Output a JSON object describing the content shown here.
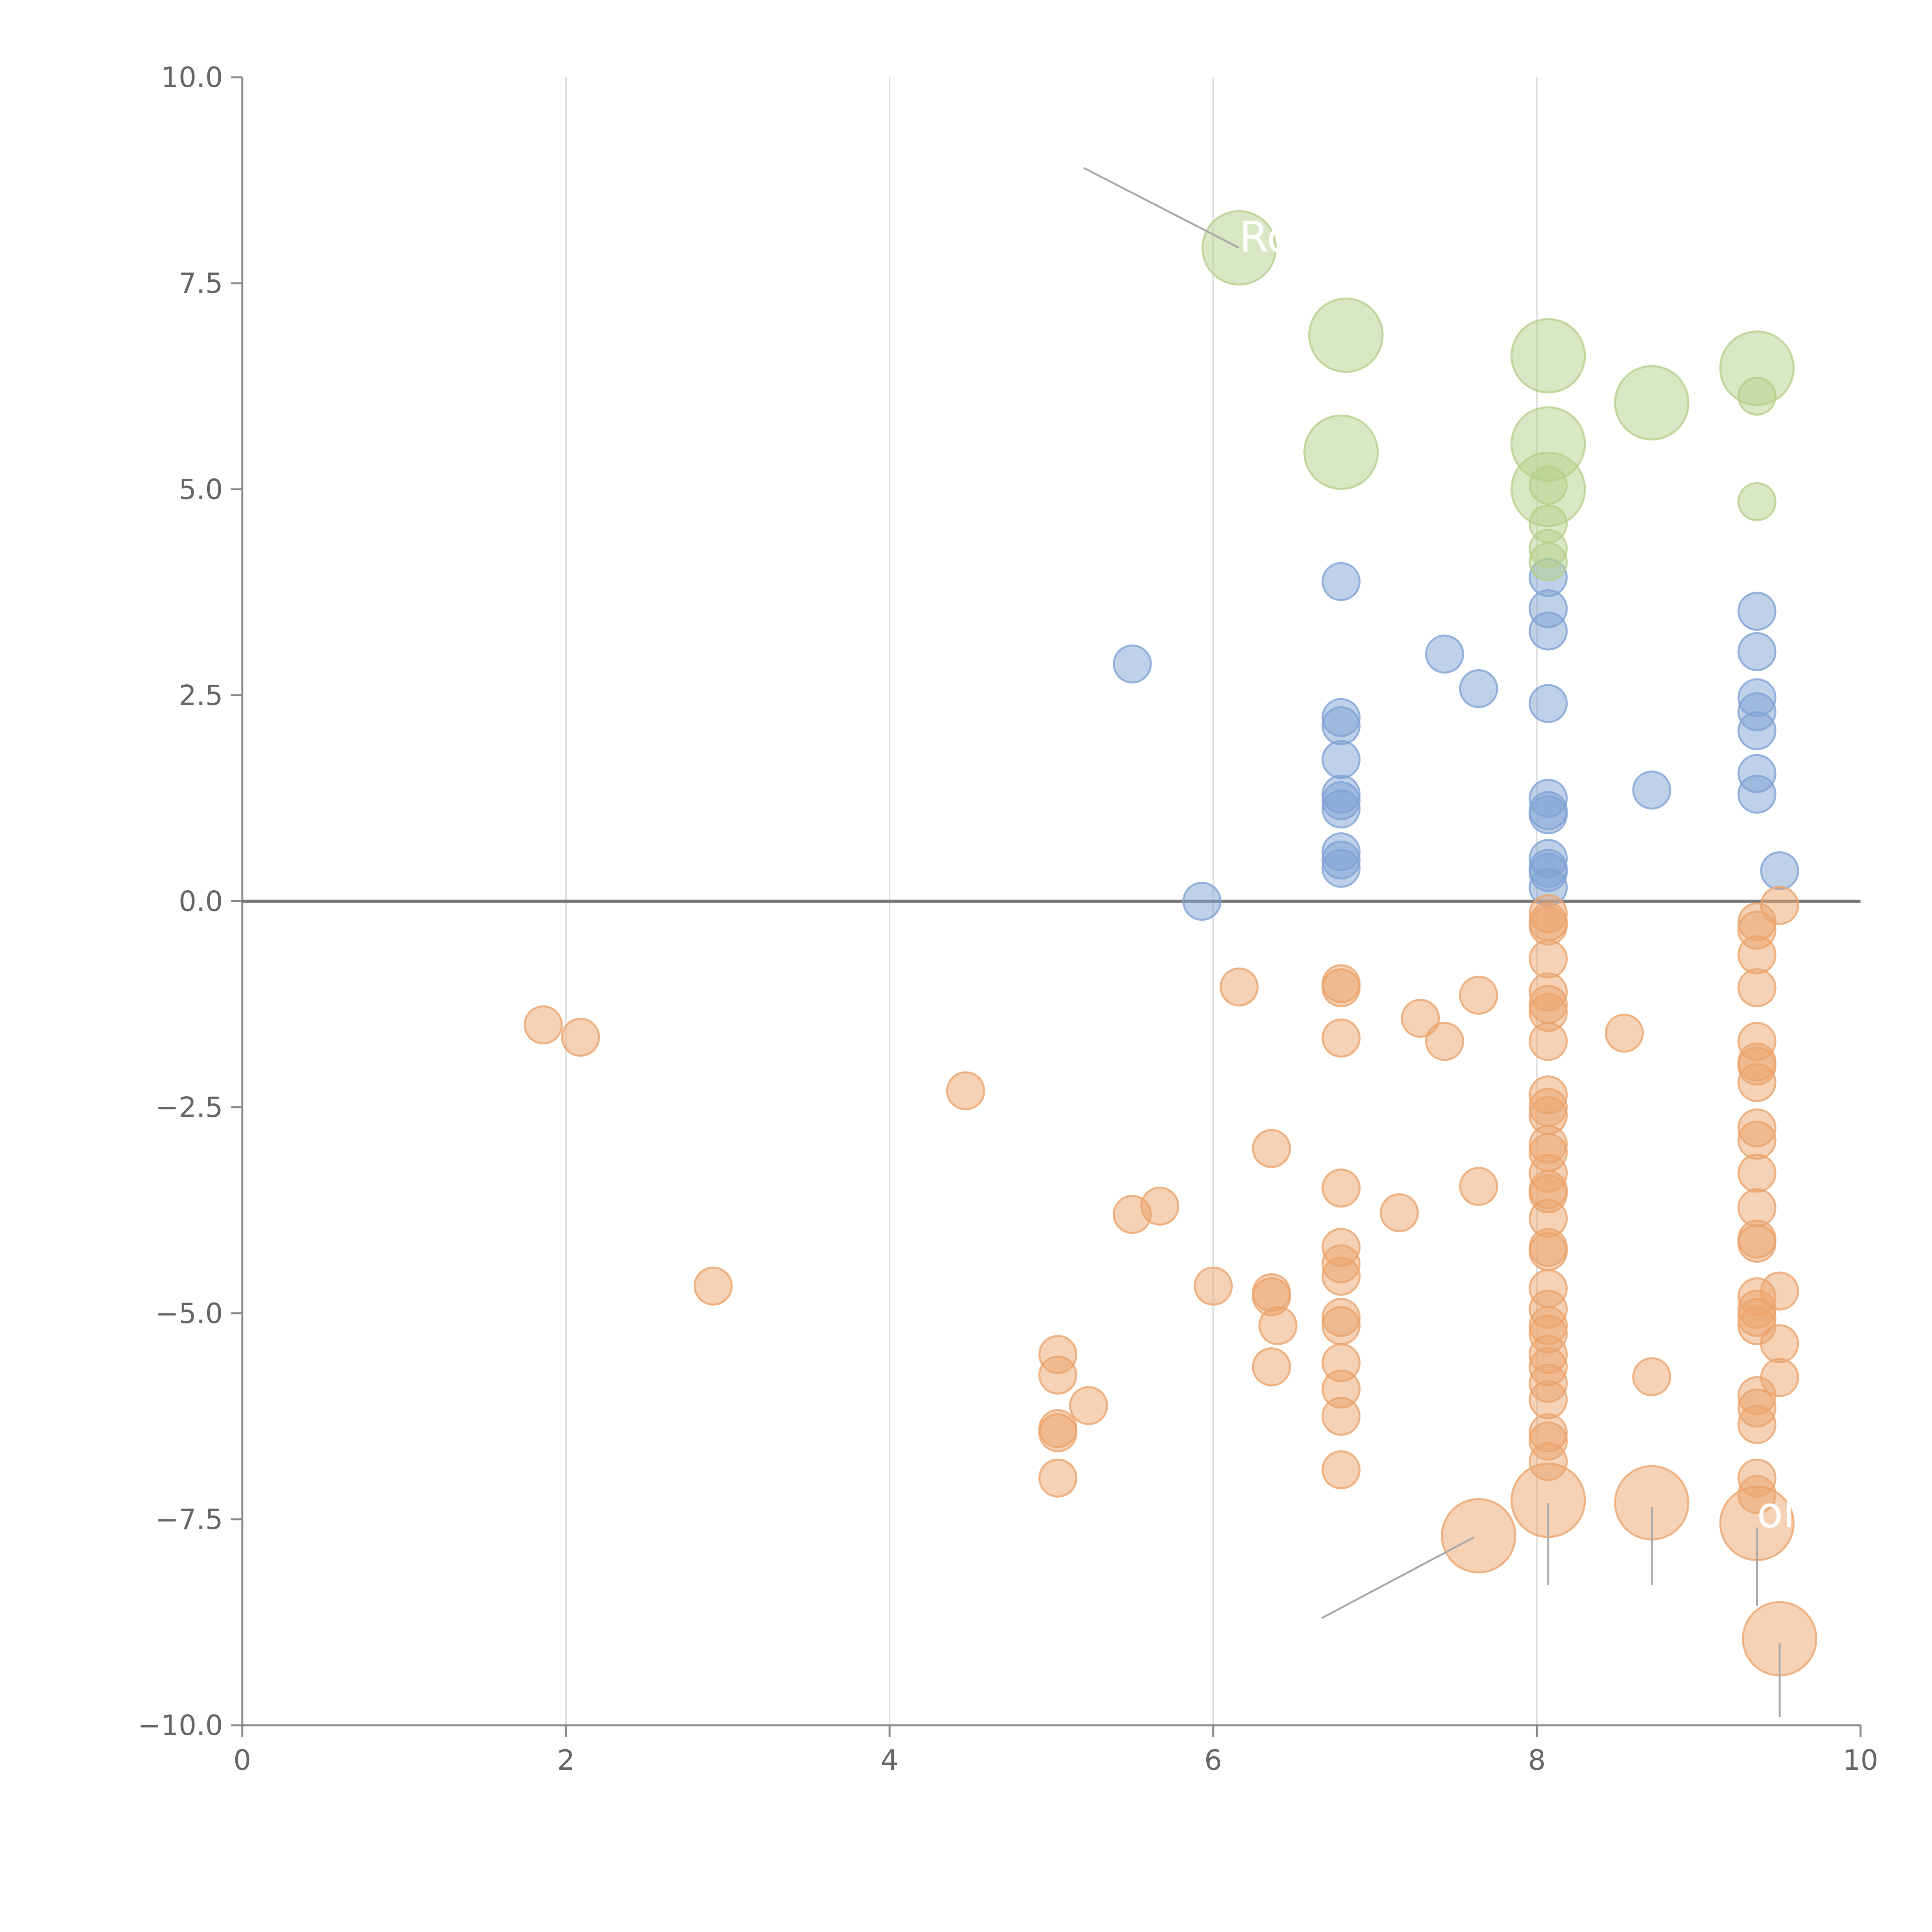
{
  "chart_data": {
    "type": "scatter",
    "title": "",
    "xlabel": "",
    "ylabel": "",
    "xlim": [
      0,
      10
    ],
    "ylim": [
      -10,
      10
    ],
    "x_ticks": [
      0,
      2,
      4,
      6,
      8,
      10
    ],
    "x_tick_labels": [
      "0",
      "2",
      "4",
      "6",
      "8",
      "10"
    ],
    "y_ticks": [
      10,
      7.5,
      5,
      2.5,
      0,
      -2.5,
      -5,
      -7.5,
      -10
    ],
    "y_tick_labels": [
      "10.0",
      "7.5",
      "5.0",
      "2.5",
      "0.0",
      "−2.5",
      "−5.0",
      "−7.5",
      "−10.0"
    ],
    "vertical_grid": true,
    "zero_line": true,
    "colors": {
      "blue": "#7fa2d4",
      "orange": "#eba46b",
      "green": "#b5d08a",
      "grid": "#dddddd",
      "axis": "#888888",
      "zero_line": "#777777",
      "leader": "#aaaaaa"
    },
    "series": [
      {
        "name": "blue",
        "color": "#7fa2d4",
        "points": [
          {
            "x": 5.5,
            "y": 2.88
          },
          {
            "x": 5.93,
            "y": 0.0
          },
          {
            "x": 6.79,
            "y": 3.88
          },
          {
            "x": 6.79,
            "y": 2.23
          },
          {
            "x": 6.79,
            "y": 2.13
          },
          {
            "x": 6.79,
            "y": 1.72
          },
          {
            "x": 6.79,
            "y": 1.3
          },
          {
            "x": 6.79,
            "y": 1.22
          },
          {
            "x": 6.79,
            "y": 1.12
          },
          {
            "x": 6.79,
            "y": 0.6
          },
          {
            "x": 6.79,
            "y": 0.5
          },
          {
            "x": 6.79,
            "y": 0.4
          },
          {
            "x": 7.43,
            "y": 3.0
          },
          {
            "x": 7.64,
            "y": 2.58
          },
          {
            "x": 8.07,
            "y": 3.93
          },
          {
            "x": 8.07,
            "y": 3.55
          },
          {
            "x": 8.07,
            "y": 3.28
          },
          {
            "x": 8.07,
            "y": 2.4
          },
          {
            "x": 8.07,
            "y": 1.25
          },
          {
            "x": 8.07,
            "y": 1.1
          },
          {
            "x": 8.07,
            "y": 1.05
          },
          {
            "x": 8.07,
            "y": 0.52
          },
          {
            "x": 8.07,
            "y": 0.4
          },
          {
            "x": 8.07,
            "y": 0.35
          },
          {
            "x": 8.07,
            "y": 0.17
          },
          {
            "x": 8.71,
            "y": 1.35
          },
          {
            "x": 9.36,
            "y": 3.52
          },
          {
            "x": 9.36,
            "y": 3.03
          },
          {
            "x": 9.36,
            "y": 2.47
          },
          {
            "x": 9.36,
            "y": 2.3
          },
          {
            "x": 9.36,
            "y": 2.07
          },
          {
            "x": 9.36,
            "y": 1.55
          },
          {
            "x": 9.36,
            "y": 1.3
          },
          {
            "x": 9.5,
            "y": 0.37
          }
        ]
      },
      {
        "name": "orange",
        "color": "#eba46b",
        "points": [
          {
            "x": 1.86,
            "y": -1.5
          },
          {
            "x": 2.09,
            "y": -1.65
          },
          {
            "x": 2.91,
            "y": -4.67
          },
          {
            "x": 4.47,
            "y": -2.3
          },
          {
            "x": 5.04,
            "y": -5.5
          },
          {
            "x": 5.04,
            "y": -5.75
          },
          {
            "x": 5.04,
            "y": -6.4
          },
          {
            "x": 5.04,
            "y": -6.45
          },
          {
            "x": 5.04,
            "y": -7.0
          },
          {
            "x": 5.23,
            "y": -6.12
          },
          {
            "x": 5.5,
            "y": -3.8
          },
          {
            "x": 5.67,
            "y": -3.7
          },
          {
            "x": 6.0,
            "y": -4.67
          },
          {
            "x": 6.16,
            "y": -1.04
          },
          {
            "x": 6.36,
            "y": -3.0
          },
          {
            "x": 6.36,
            "y": -4.75
          },
          {
            "x": 6.36,
            "y": -4.8
          },
          {
            "x": 6.36,
            "y": -5.65
          },
          {
            "x": 6.4,
            "y": -5.15
          },
          {
            "x": 6.79,
            "y": -1.0
          },
          {
            "x": 6.79,
            "y": -1.05
          },
          {
            "x": 6.79,
            "y": -1.66
          },
          {
            "x": 6.79,
            "y": -3.48
          },
          {
            "x": 6.79,
            "y": -4.2
          },
          {
            "x": 6.79,
            "y": -4.4
          },
          {
            "x": 6.79,
            "y": -4.55
          },
          {
            "x": 6.79,
            "y": -5.05
          },
          {
            "x": 6.79,
            "y": -5.15
          },
          {
            "x": 6.79,
            "y": -5.6
          },
          {
            "x": 6.79,
            "y": -5.92
          },
          {
            "x": 6.79,
            "y": -6.25
          },
          {
            "x": 6.79,
            "y": -6.9
          },
          {
            "x": 7.15,
            "y": -3.78
          },
          {
            "x": 7.28,
            "y": -1.42
          },
          {
            "x": 7.43,
            "y": -1.7
          },
          {
            "x": 7.64,
            "y": -1.14
          },
          {
            "x": 7.64,
            "y": -3.46
          },
          {
            "x": 8.54,
            "y": -1.6
          },
          {
            "x": 8.07,
            "y": -0.15
          },
          {
            "x": 8.07,
            "y": -0.25
          },
          {
            "x": 8.07,
            "y": -0.3
          },
          {
            "x": 8.07,
            "y": -0.7
          },
          {
            "x": 8.07,
            "y": -1.1
          },
          {
            "x": 8.07,
            "y": -1.25
          },
          {
            "x": 8.07,
            "y": -1.35
          },
          {
            "x": 8.07,
            "y": -1.7
          },
          {
            "x": 8.07,
            "y": -2.35
          },
          {
            "x": 8.07,
            "y": -2.5
          },
          {
            "x": 8.07,
            "y": -2.6
          },
          {
            "x": 8.07,
            "y": -2.95
          },
          {
            "x": 8.07,
            "y": -3.05
          },
          {
            "x": 8.07,
            "y": -3.3
          },
          {
            "x": 8.07,
            "y": -3.5
          },
          {
            "x": 8.07,
            "y": -3.55
          },
          {
            "x": 8.07,
            "y": -3.85
          },
          {
            "x": 8.07,
            "y": -4.2
          },
          {
            "x": 8.07,
            "y": -4.25
          },
          {
            "x": 8.07,
            "y": -4.7
          },
          {
            "x": 8.07,
            "y": -4.95
          },
          {
            "x": 8.07,
            "y": -5.15
          },
          {
            "x": 8.07,
            "y": -5.25
          },
          {
            "x": 8.07,
            "y": -5.5
          },
          {
            "x": 8.07,
            "y": -5.65
          },
          {
            "x": 8.07,
            "y": -5.85
          },
          {
            "x": 8.07,
            "y": -6.05
          },
          {
            "x": 8.07,
            "y": -6.45
          },
          {
            "x": 8.07,
            "y": -6.55
          },
          {
            "x": 8.07,
            "y": -6.8
          },
          {
            "x": 8.71,
            "y": -5.77
          },
          {
            "x": 9.36,
            "y": -0.25
          },
          {
            "x": 9.36,
            "y": -0.35
          },
          {
            "x": 9.36,
            "y": -0.65
          },
          {
            "x": 9.36,
            "y": -1.05
          },
          {
            "x": 9.36,
            "y": -1.7
          },
          {
            "x": 9.36,
            "y": -1.95
          },
          {
            "x": 9.36,
            "y": -2.0
          },
          {
            "x": 9.36,
            "y": -2.2
          },
          {
            "x": 9.36,
            "y": -2.75
          },
          {
            "x": 9.36,
            "y": -2.9
          },
          {
            "x": 9.36,
            "y": -3.3
          },
          {
            "x": 9.36,
            "y": -3.72
          },
          {
            "x": 9.36,
            "y": -4.1
          },
          {
            "x": 9.36,
            "y": -4.15
          },
          {
            "x": 9.36,
            "y": -4.8
          },
          {
            "x": 9.36,
            "y": -4.95
          },
          {
            "x": 9.36,
            "y": -5.05
          },
          {
            "x": 9.36,
            "y": -5.15
          },
          {
            "x": 9.36,
            "y": -6.0
          },
          {
            "x": 9.36,
            "y": -6.15
          },
          {
            "x": 9.36,
            "y": -6.35
          },
          {
            "x": 9.36,
            "y": -7.0
          },
          {
            "x": 9.36,
            "y": -7.2
          },
          {
            "x": 9.5,
            "y": -0.05
          },
          {
            "x": 9.5,
            "y": -4.73
          },
          {
            "x": 9.5,
            "y": -5.37
          },
          {
            "x": 9.5,
            "y": -5.78
          }
        ]
      },
      {
        "name": "green",
        "color": "#b5d08a",
        "points": [
          {
            "x": 8.07,
            "y": 5.05
          },
          {
            "x": 8.07,
            "y": 4.58
          },
          {
            "x": 8.07,
            "y": 4.28
          },
          {
            "x": 8.07,
            "y": 4.12
          },
          {
            "x": 9.36,
            "y": 6.13
          },
          {
            "x": 9.36,
            "y": 4.85
          }
        ]
      }
    ],
    "highlighted": [
      {
        "series": "green",
        "x": 6.16,
        "y": 7.93,
        "size": "large"
      },
      {
        "series": "green",
        "x": 6.82,
        "y": 6.87,
        "size": "large"
      },
      {
        "series": "green",
        "x": 6.79,
        "y": 5.45,
        "size": "large"
      },
      {
        "series": "green",
        "x": 8.07,
        "y": 6.62,
        "size": "large"
      },
      {
        "series": "green",
        "x": 8.07,
        "y": 5.55,
        "size": "large"
      },
      {
        "series": "green",
        "x": 8.07,
        "y": 5.0,
        "size": "large"
      },
      {
        "series": "green",
        "x": 8.71,
        "y": 6.05,
        "size": "large"
      },
      {
        "series": "green",
        "x": 9.36,
        "y": 6.47,
        "size": "large"
      },
      {
        "series": "orange",
        "x": 7.64,
        "y": -7.7,
        "size": "large"
      },
      {
        "series": "orange",
        "x": 8.07,
        "y": -7.27,
        "size": "large"
      },
      {
        "series": "orange",
        "x": 8.71,
        "y": -7.3,
        "size": "large"
      },
      {
        "series": "orange",
        "x": 9.36,
        "y": -7.55,
        "size": "large"
      },
      {
        "series": "orange",
        "x": 9.5,
        "y": -8.95,
        "size": "large"
      }
    ],
    "annotations": [
      {
        "text": "Ro",
        "anchor_x": 6.16,
        "anchor_y": 7.93,
        "from_x": 5.2,
        "from_y": 8.9,
        "color": "#ffffff"
      },
      {
        "text": "ol",
        "anchor_x": 9.36,
        "anchor_y": -7.55,
        "from_x": 9.36,
        "from_y": -8.0,
        "color": "#ffffff"
      }
    ],
    "leader_lines": [
      {
        "x1": 5.2,
        "y1": 8.9,
        "x2": 6.16,
        "y2": 7.93
      },
      {
        "x1": 6.67,
        "y1": -8.7,
        "x2": 7.61,
        "y2": -7.72
      },
      {
        "x1": 8.07,
        "y1": -8.3,
        "x2": 8.07,
        "y2": -7.3
      },
      {
        "x1": 8.71,
        "y1": -8.3,
        "x2": 8.71,
        "y2": -7.35
      },
      {
        "x1": 9.36,
        "y1": -8.55,
        "x2": 9.36,
        "y2": -7.6
      },
      {
        "x1": 9.5,
        "y1": -9.9,
        "x2": 9.5,
        "y2": -9.0
      }
    ]
  }
}
